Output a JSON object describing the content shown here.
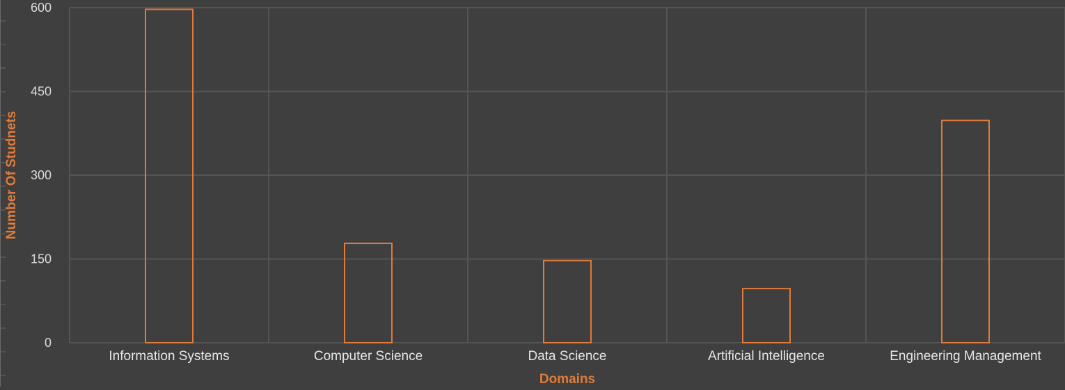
{
  "chart_data": {
    "type": "bar",
    "categories": [
      "Information Systems",
      "Computer Science",
      "Data Science",
      "Artificial Intelligence",
      "Engineering Management"
    ],
    "values": [
      597,
      178,
      147,
      97,
      398
    ],
    "xlabel": "Domains",
    "ylabel": "Number Of Studnets",
    "ylim": [
      0,
      600
    ],
    "yticks": [
      0,
      150,
      300,
      450,
      600
    ],
    "grid": true,
    "colors": {
      "background": "#3f3f3f",
      "bar_outline": "#e07b39",
      "grid": "#545454",
      "tick_text": "#d9d9d9",
      "axis_title": "#e07b39"
    }
  }
}
